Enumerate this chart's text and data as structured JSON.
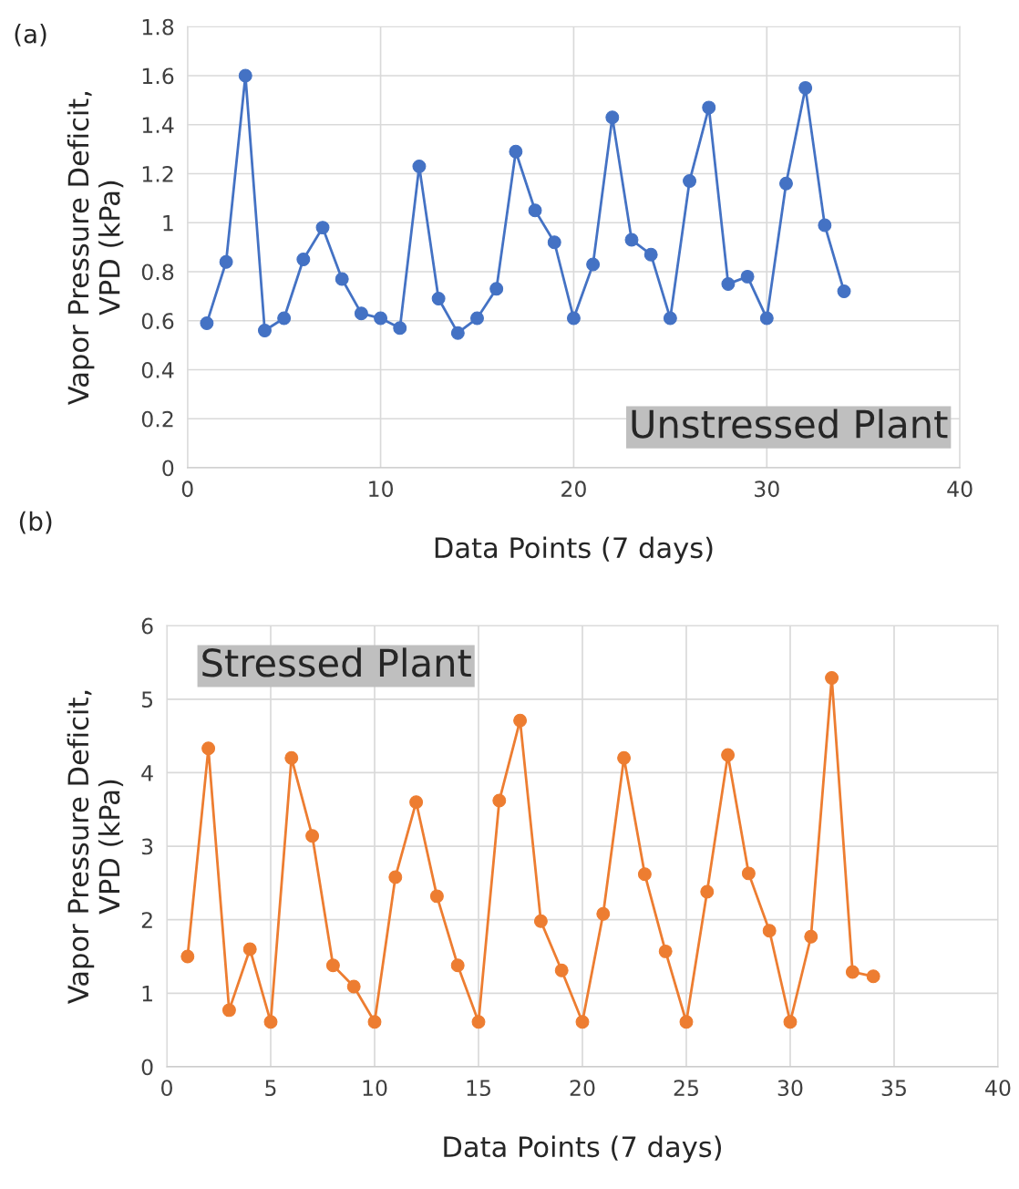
{
  "chart_data": [
    {
      "type": "line",
      "xlabel": "Data Points (7 days)",
      "ylabel": "Vapor Pressure Deficit,\nVPD (kPa)",
      "annotations": [
        "(a)",
        "Unstressed Plant"
      ],
      "xlim": [
        0,
        40
      ],
      "xticks": [
        0,
        10,
        20,
        30,
        40
      ],
      "ylim": [
        0,
        1.8
      ],
      "yticks": [
        0,
        0.2,
        0.4,
        0.6,
        0.8,
        1,
        1.2,
        1.4,
        1.6,
        1.8
      ],
      "grid": true,
      "marker": "circle",
      "line_style": "solid",
      "x": [
        1,
        2,
        3,
        4,
        5,
        6,
        7,
        8,
        9,
        10,
        11,
        12,
        13,
        14,
        15,
        16,
        17,
        18,
        19,
        20,
        21,
        22,
        23,
        24,
        25,
        26,
        27,
        28,
        29,
        30,
        31,
        32,
        33,
        34
      ],
      "series": [
        {
          "color": "#4472c4",
          "values": [
            0.59,
            0.84,
            1.6,
            0.56,
            0.61,
            0.85,
            0.98,
            0.77,
            0.63,
            0.61,
            0.57,
            1.23,
            0.69,
            0.55,
            0.61,
            0.73,
            1.29,
            1.05,
            0.92,
            0.61,
            0.83,
            1.43,
            0.93,
            0.87,
            0.61,
            1.17,
            1.47,
            0.75,
            0.78,
            0.61,
            1.16,
            1.55,
            0.99,
            0.72
          ]
        }
      ]
    },
    {
      "type": "line",
      "xlabel": "Data Points (7 days)",
      "ylabel": "Vapor Pressure Deficit,\nVPD (kPa)",
      "annotations": [
        "(b)",
        "Stressed Plant"
      ],
      "xlim": [
        0,
        40
      ],
      "xticks": [
        0,
        5,
        10,
        15,
        20,
        25,
        30,
        35,
        40
      ],
      "ylim": [
        0,
        6
      ],
      "yticks": [
        0,
        1,
        2,
        3,
        4,
        5,
        6
      ],
      "grid": true,
      "marker": "circle",
      "line_style": "solid",
      "x": [
        1,
        2,
        3,
        4,
        5,
        6,
        7,
        8,
        9,
        10,
        11,
        12,
        13,
        14,
        15,
        16,
        17,
        18,
        19,
        20,
        21,
        22,
        23,
        24,
        25,
        26,
        27,
        28,
        29,
        30,
        31,
        32,
        33,
        34
      ],
      "series": [
        {
          "color": "#ed7d31",
          "values": [
            1.5,
            4.33,
            0.77,
            1.6,
            0.61,
            4.2,
            3.14,
            1.38,
            1.09,
            0.61,
            2.58,
            3.6,
            2.32,
            1.38,
            0.61,
            3.62,
            4.71,
            1.98,
            1.31,
            0.61,
            2.08,
            4.2,
            2.62,
            1.57,
            0.61,
            2.38,
            4.24,
            2.63,
            1.85,
            0.61,
            1.77,
            5.29,
            1.29,
            1.23
          ]
        }
      ]
    }
  ]
}
